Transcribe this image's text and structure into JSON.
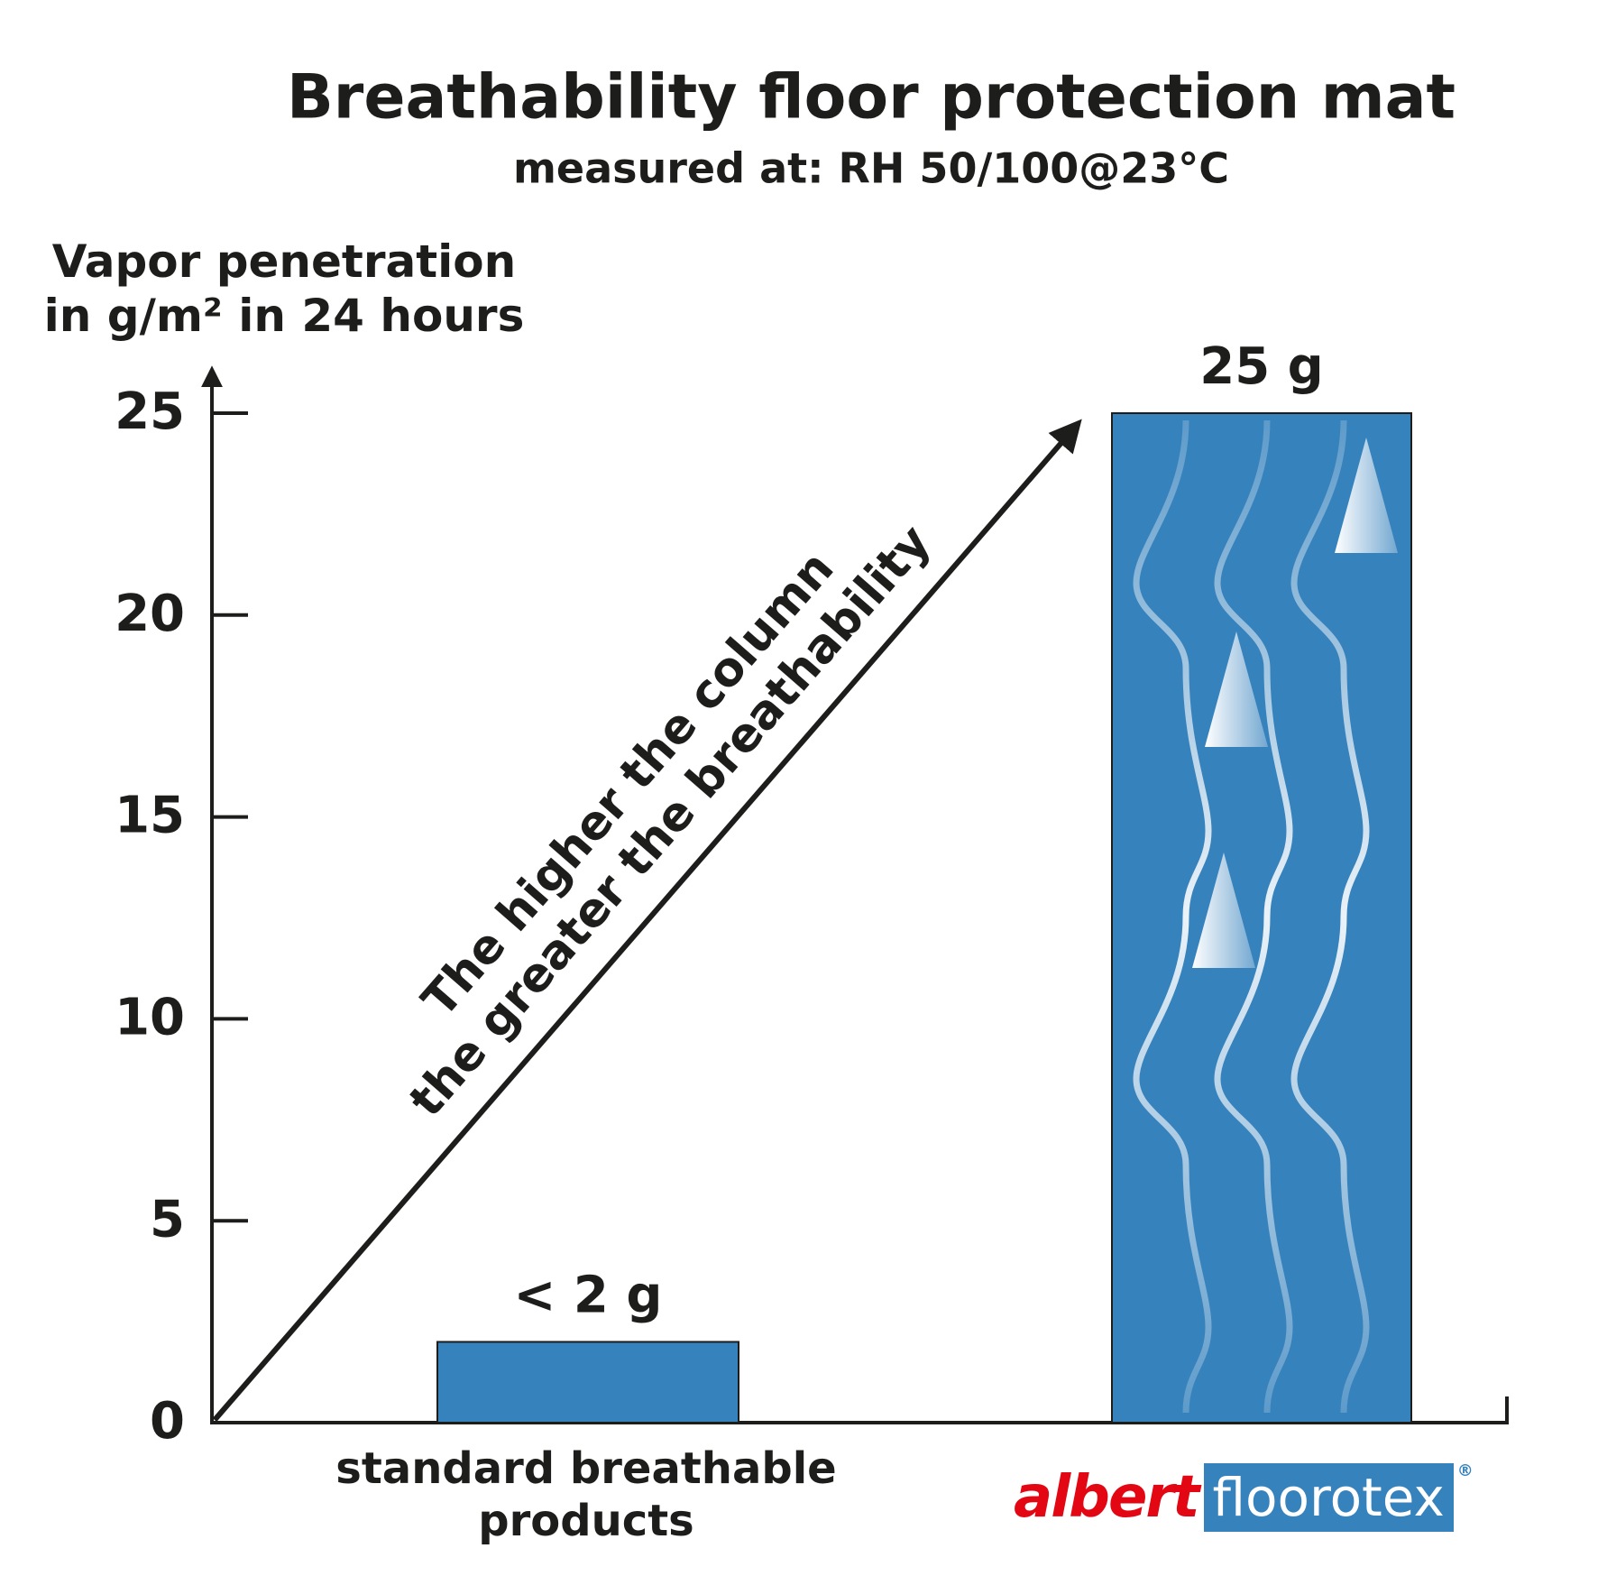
{
  "chart_data": {
    "type": "bar",
    "title": "Breathability floor protection mat",
    "subtitle": "measured at: RH 50/100@23°C",
    "y_label": "Vapor penetration in g/m² in 24 hours",
    "annotation": [
      "The higher the column",
      "the greater the breathability"
    ],
    "categories": [
      "standard breathable products",
      null
    ],
    "values": [
      2,
      25
    ],
    "value_labels": [
      "< 2 g",
      "25 g"
    ],
    "color": "#3682bd",
    "ylim": [
      0,
      25
    ],
    "yticks": [
      0,
      5,
      10,
      15,
      20,
      25
    ],
    "grid": false
  },
  "brand": {
    "part1": "albert",
    "part2": "floorotex",
    "mark": "®"
  }
}
